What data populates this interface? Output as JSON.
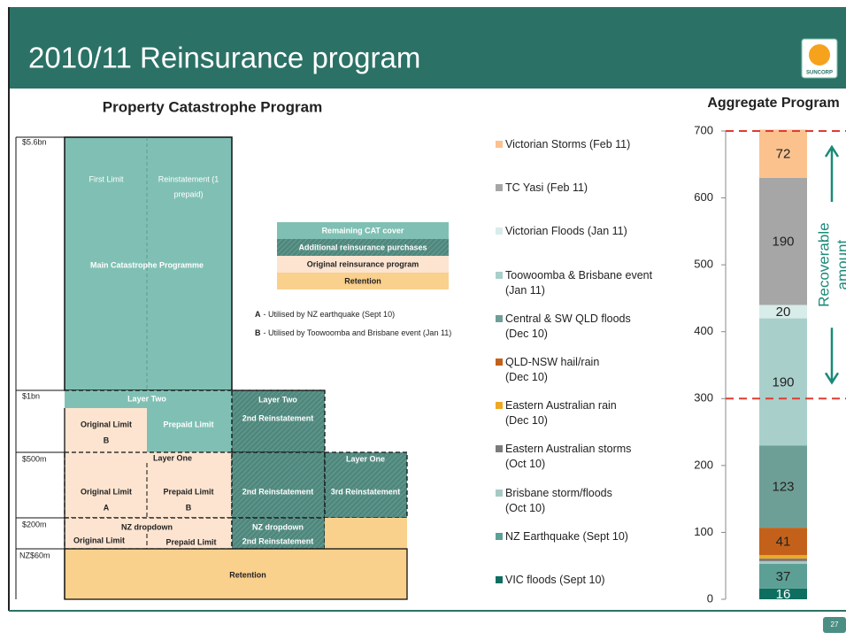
{
  "header": {
    "title": "2010/11 Reinsurance program",
    "logo": "SUNCORP",
    "page_number": "27"
  },
  "diagram": {
    "title": "Property Catastrophe Program",
    "levels": [
      "$5.6bn",
      "$1bn",
      "$500m",
      "$200m",
      "NZ$60m"
    ],
    "main": {
      "first_limit": "First Limit",
      "reinstatement": [
        "Reinstatement (1",
        "prepaid)"
      ],
      "name": "Main Catastrophe Programme"
    },
    "layer_two": {
      "name": "Layer Two",
      "original": [
        "Original Limit",
        "B"
      ],
      "prepaid": "Prepaid Limit",
      "reinstatement": [
        "Layer Two",
        "2nd Reinstatement"
      ]
    },
    "layer_one": {
      "name": "Layer One",
      "original": [
        "Original Limit",
        "A"
      ],
      "prepaid": [
        "Prepaid Limit",
        "B"
      ],
      "reinstatement_2": "2nd Reinstatement",
      "reinstatement_3": [
        "Layer One",
        "3rd Reinstatement"
      ]
    },
    "nz_dropdown": {
      "name": "NZ dropdown",
      "original": "Original Limit",
      "prepaid": "Prepaid Limit",
      "reinstatement": [
        "NZ dropdown",
        "2nd Reinstatement"
      ]
    },
    "retention": "Retention",
    "key": [
      "Remaining CAT cover",
      "Additional reinsurance purchases",
      "Original reinsurance program",
      "Retention"
    ],
    "notes": [
      {
        "letter": "A",
        "text": "- Utilised by NZ earthquake (Sept 10)"
      },
      {
        "letter": "B",
        "text": "- Utilised by Toowoomba and Brisbane event (Jan 11)"
      }
    ]
  },
  "chart_data": {
    "type": "stacked_bar",
    "title": "Aggregate Program",
    "series": [
      {
        "name": "VIC floods (Sept 10)",
        "color": "#0e6e60",
        "values": [
          16
        ]
      },
      {
        "name": "NZ Earthquake (Sept 10)",
        "color": "#5c9f95",
        "values": [
          37
        ]
      },
      {
        "name": "Brisbane storm/floods\n(Oct 10)",
        "color": "#a7c9c5",
        "values": [
          4
        ]
      },
      {
        "name": "Eastern Australian storms\n(Oct 10)",
        "color": "#7b7b7b",
        "values": [
          4
        ]
      },
      {
        "name": "Eastern Australian rain\n(Dec 10)",
        "color": "#efa822",
        "values": [
          5
        ]
      },
      {
        "name": "QLD-NSW hail/rain\n(Dec 10)",
        "color": "#c3611b",
        "values": [
          41
        ]
      },
      {
        "name": "Central & SW QLD floods\n(Dec 10)",
        "color": "#6e9f96",
        "values": [
          123
        ]
      },
      {
        "name": "Toowoomba & Brisbane event\n(Jan 11)",
        "color": "#a9cfcb",
        "values": [
          190
        ]
      },
      {
        "name": "Victorian Floods (Jan 11)",
        "color": "#d8ece9",
        "values": [
          20
        ]
      },
      {
        "name": "TC Yasi (Feb 11)",
        "color": "#a6a6a6",
        "values": [
          190
        ]
      },
      {
        "name": "Victorian Storms (Feb 11)",
        "color": "#fbc28e",
        "values": [
          72
        ]
      }
    ],
    "ylim": [
      0,
      700
    ],
    "yticks": [
      0,
      100,
      200,
      300,
      400,
      500,
      600,
      700
    ],
    "reference_lines": [
      300,
      700
    ],
    "annotation": [
      "Recoverable",
      "amount"
    ]
  }
}
